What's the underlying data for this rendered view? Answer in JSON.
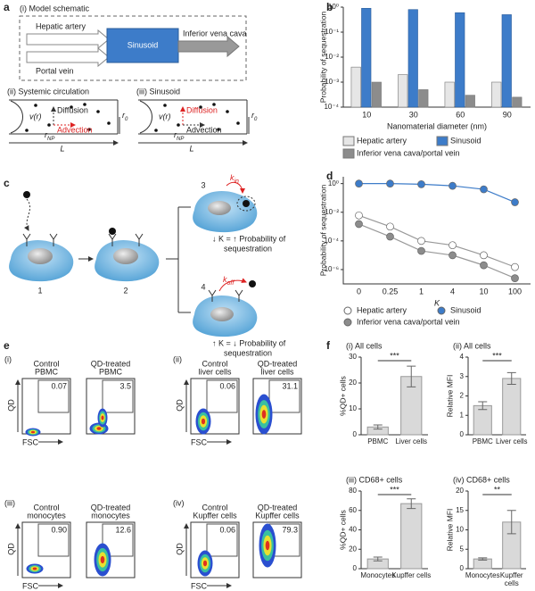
{
  "panel_labels": [
    "a",
    "b",
    "c",
    "d",
    "e",
    "f"
  ],
  "schematic_a": {
    "title": "(i) Model schematic",
    "hepatic_artery": "Hepatic artery",
    "portal_vein": "Portal vein",
    "sinusoid": "Sinusoid",
    "ivc": "Inferior vena cava",
    "systemic": {
      "title": "(ii) Systemic circulation",
      "velocity": "v(r)",
      "diffusion": "Diffusion",
      "advection": "Advection",
      "r_np": {
        "main": "r",
        "sub": "NP"
      },
      "r_0": {
        "main": "r",
        "sub": "0"
      },
      "length": "L"
    },
    "sinusoid_panel": {
      "title": "(iii) Sinusoid",
      "velocity": "v(r)",
      "diffusion": "Diffusion",
      "advection": "Advection",
      "r_np": {
        "main": "r",
        "sub": "NP"
      },
      "r_0": {
        "main": "r",
        "sub": "0"
      },
      "length": "L"
    }
  },
  "schematic_c": {
    "steps": [
      "1",
      "2",
      "3",
      "4"
    ],
    "k_in": {
      "main": "k",
      "sub": "in"
    },
    "k_off": {
      "main": "k",
      "sub": "off"
    },
    "step3_text": [
      "↓ K = ↑ Probability of",
      "sequestration"
    ],
    "step4_text": [
      "↑ K = ↓ Probability of",
      "sequestration"
    ]
  },
  "flow_e": {
    "x_label": "FSC",
    "y_label": "QD",
    "groups": [
      {
        "label": "(i)",
        "plots": [
          {
            "title": [
              "Control",
              "PBMC"
            ],
            "value": "0.07"
          },
          {
            "title": [
              "QD-treated",
              "PBMC"
            ],
            "value": "3.5"
          }
        ]
      },
      {
        "label": "(ii)",
        "plots": [
          {
            "title": [
              "Control",
              "liver cells"
            ],
            "value": "0.06"
          },
          {
            "title": [
              "QD-treated",
              "liver cells"
            ],
            "value": "31.1"
          }
        ]
      },
      {
        "label": "(iii)",
        "plots": [
          {
            "title": [
              "Control",
              "monocytes"
            ],
            "value": "0.90"
          },
          {
            "title": [
              "QD-treated",
              "monocytes"
            ],
            "value": "12.6"
          }
        ]
      },
      {
        "label": "(iv)",
        "plots": [
          {
            "title": [
              "Control",
              "Kupffer cells"
            ],
            "value": "0.06"
          },
          {
            "title": [
              "QD-treated",
              "Kupffer cells"
            ],
            "value": "79.3"
          }
        ]
      }
    ]
  },
  "chart_data": [
    {
      "type": "grouped_bar",
      "log": true,
      "xlabel": "Nanomaterial diameter (nm)",
      "ylabel": "Probability of sequestration",
      "categories": [
        "10",
        "30",
        "60",
        "90"
      ],
      "series": [
        {
          "name": "Hepatic artery",
          "color": "#e6e6e6",
          "values": [
            0.004,
            0.002,
            0.001,
            0.001
          ]
        },
        {
          "name": "Sinusoid",
          "color": "#3d7cc9",
          "values": [
            0.9,
            0.8,
            0.6,
            0.5
          ]
        },
        {
          "name": "Inferior vena cava/portal vein",
          "color": "#8c8c8c",
          "values": [
            0.001,
            0.0005,
            0.0003,
            0.00025
          ]
        }
      ],
      "ylim": [
        0.0001,
        1
      ],
      "yticks": [
        {
          "value": 1,
          "label": "10⁰"
        },
        {
          "value": 0.1,
          "label": "10⁻¹"
        },
        {
          "value": 0.01,
          "label": "10⁻²"
        },
        {
          "value": 0.001,
          "label": "10⁻³"
        },
        {
          "value": 0.0001,
          "label": "10⁻⁴"
        }
      ]
    },
    {
      "type": "line",
      "log": true,
      "xlabel": "K",
      "ylabel": "Probability of sequestration",
      "categories": [
        "0",
        "0.25",
        "1",
        "4",
        "10",
        "100"
      ],
      "series": [
        {
          "name": "Hepatic artery",
          "color": "#ffffff",
          "values": [
            0.006,
            0.001,
            0.0001,
            5e-05,
            1e-05,
            1.5e-06
          ]
        },
        {
          "name": "Sinusoid",
          "color": "#3d7cc9",
          "values": [
            1,
            1,
            0.9,
            0.7,
            0.4,
            0.05
          ]
        },
        {
          "name": "Inferior vena cava/portal vein",
          "color": "#8c8c8c",
          "values": [
            0.0015,
            0.0002,
            2e-05,
            1e-05,
            2e-06,
            2.5e-07
          ]
        }
      ],
      "ylim": [
        1e-07,
        3
      ],
      "yticks": [
        {
          "value": 1,
          "label": "10⁰"
        },
        {
          "value": 0.01,
          "label": "10⁻²"
        },
        {
          "value": 0.0001,
          "label": "10⁻⁴"
        },
        {
          "value": 1e-06,
          "label": "10⁻⁶"
        }
      ]
    },
    {
      "type": "error_bar",
      "title": "(i) All cells",
      "ylabel": "%QD+ cells",
      "categories": [
        "PBMC",
        "Liver cells"
      ],
      "values": [
        3,
        22.5
      ],
      "errors": [
        0.8,
        4
      ],
      "color": "#d9d9d9",
      "significance": "***",
      "ylim": [
        0,
        30
      ],
      "yticks": [
        0,
        10,
        20,
        30
      ]
    },
    {
      "type": "error_bar",
      "title": "(ii) All cells",
      "ylabel": "Relative MFI",
      "categories": [
        "PBMC",
        "Liver cells"
      ],
      "values": [
        1.5,
        2.9
      ],
      "errors": [
        0.2,
        0.3
      ],
      "color": "#d9d9d9",
      "significance": "***",
      "ylim": [
        0,
        4
      ],
      "yticks": [
        0,
        1,
        2,
        3,
        4
      ]
    },
    {
      "type": "error_bar",
      "title": "(iii) CD68+ cells",
      "ylabel": "%QD+ cells",
      "categories": [
        "Monocytes",
        "Kupffer cells"
      ],
      "values": [
        10,
        67
      ],
      "errors": [
        2,
        5
      ],
      "color": "#d9d9d9",
      "significance": "***",
      "ylim": [
        0,
        80
      ],
      "yticks": [
        0,
        20,
        40,
        60,
        80
      ]
    },
    {
      "type": "error_bar",
      "title": "(iv) CD68+ cells",
      "ylabel": "Relative MFI",
      "categories": [
        "Monocytes",
        "Kupffer cells"
      ],
      "values": [
        2.5,
        12
      ],
      "errors": [
        0.3,
        3
      ],
      "color": "#d9d9d9",
      "significance": "**",
      "ylim": [
        0,
        20
      ],
      "yticks": [
        0,
        5,
        10,
        15,
        20
      ]
    }
  ]
}
